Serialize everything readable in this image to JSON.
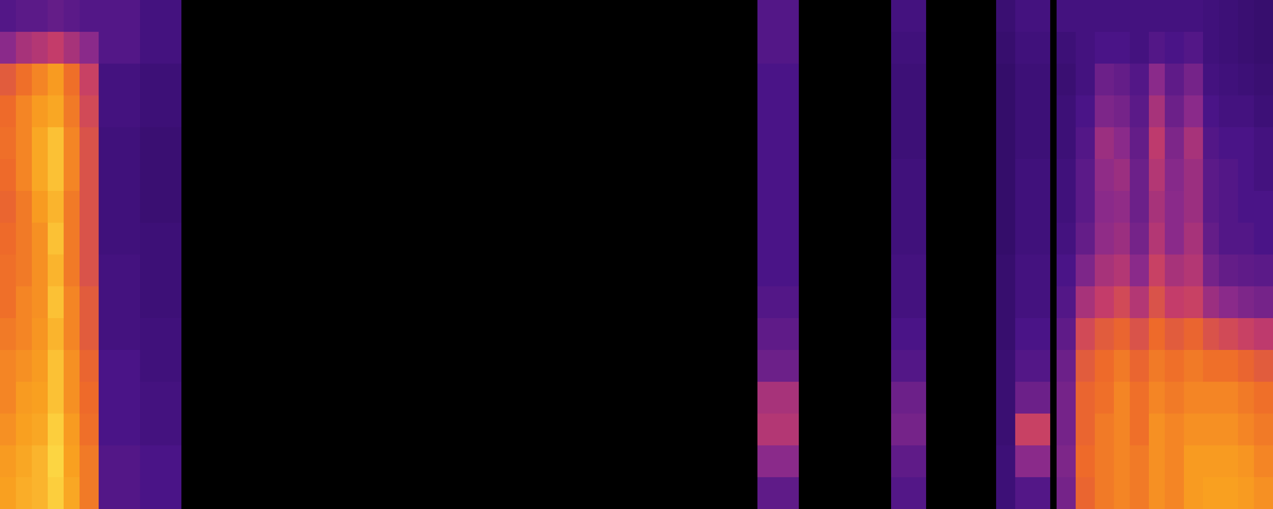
{
  "chart_data": {
    "type": "heatmap",
    "x_bins": [
      0,
      5,
      10,
      15,
      20,
      25,
      31,
      44,
      57,
      238,
      251,
      280,
      291,
      313,
      319,
      330,
      332,
      338,
      344,
      350,
      355,
      361,
      366,
      372,
      378,
      383,
      389,
      394,
      400
    ],
    "y_bins": [
      0,
      10,
      20,
      30,
      40,
      50,
      60,
      70,
      80,
      90,
      100,
      110,
      120,
      130,
      140,
      150,
      160
    ],
    "xlim": [
      0,
      400
    ],
    "ylim": [
      0,
      160
    ],
    "zlim": [
      0,
      1
    ],
    "grid": false,
    "tick_labels": false,
    "cells": [
      [
        0.85,
        0.87,
        0.88,
        0.92,
        0.86,
        0.78,
        0.42,
        0.4,
        0,
        0.45,
        0,
        0.42,
        0,
        0.36,
        0.42,
        0,
        0.5,
        0.74,
        0.78,
        0.8,
        0.78,
        0.82,
        0.8,
        0.84,
        0.85,
        0.85,
        0.84,
        0.82
      ],
      [
        0.84,
        0.86,
        0.88,
        0.93,
        0.85,
        0.78,
        0.42,
        0.4,
        0,
        0.55,
        0,
        0.45,
        0,
        0.36,
        0.55,
        0,
        0.52,
        0.75,
        0.78,
        0.8,
        0.78,
        0.82,
        0.8,
        0.84,
        0.84,
        0.84,
        0.83,
        0.8
      ],
      [
        0.82,
        0.85,
        0.86,
        0.92,
        0.84,
        0.76,
        0.4,
        0.38,
        0,
        0.62,
        0,
        0.5,
        0,
        0.35,
        0.66,
        0,
        0.5,
        0.74,
        0.78,
        0.8,
        0.76,
        0.82,
        0.8,
        0.82,
        0.82,
        0.82,
        0.8,
        0.78
      ],
      [
        0.8,
        0.84,
        0.85,
        0.9,
        0.82,
        0.75,
        0.4,
        0.38,
        0,
        0.6,
        0,
        0.48,
        0,
        0.35,
        0.48,
        0,
        0.5,
        0.74,
        0.76,
        0.8,
        0.76,
        0.8,
        0.78,
        0.8,
        0.8,
        0.8,
        0.78,
        0.76
      ],
      [
        0.8,
        0.82,
        0.84,
        0.9,
        0.82,
        0.74,
        0.4,
        0.37,
        0,
        0.48,
        0,
        0.42,
        0,
        0.35,
        0.42,
        0,
        0.48,
        0.72,
        0.75,
        0.78,
        0.74,
        0.78,
        0.76,
        0.78,
        0.76,
        0.76,
        0.74,
        0.72
      ],
      [
        0.78,
        0.8,
        0.83,
        0.88,
        0.8,
        0.72,
        0.38,
        0.37,
        0,
        0.45,
        0,
        0.4,
        0,
        0.34,
        0.4,
        0,
        0.45,
        0.68,
        0.72,
        0.74,
        0.7,
        0.75,
        0.72,
        0.74,
        0.7,
        0.68,
        0.66,
        0.64
      ],
      [
        0.76,
        0.8,
        0.82,
        0.9,
        0.8,
        0.72,
        0.38,
        0.36,
        0,
        0.42,
        0,
        0.38,
        0,
        0.34,
        0.38,
        0,
        0.42,
        0.6,
        0.65,
        0.68,
        0.62,
        0.7,
        0.65,
        0.66,
        0.58,
        0.55,
        0.52,
        0.5
      ],
      [
        0.76,
        0.78,
        0.82,
        0.88,
        0.78,
        0.7,
        0.38,
        0.36,
        0,
        0.4,
        0,
        0.38,
        0,
        0.34,
        0.38,
        0,
        0.4,
        0.52,
        0.6,
        0.62,
        0.55,
        0.66,
        0.6,
        0.62,
        0.5,
        0.46,
        0.45,
        0.44
      ],
      [
        0.75,
        0.78,
        0.82,
        0.9,
        0.78,
        0.7,
        0.37,
        0.36,
        0,
        0.4,
        0,
        0.37,
        0,
        0.33,
        0.37,
        0,
        0.38,
        0.46,
        0.56,
        0.58,
        0.5,
        0.62,
        0.55,
        0.6,
        0.46,
        0.42,
        0.42,
        0.4
      ],
      [
        0.74,
        0.78,
        0.84,
        0.88,
        0.78,
        0.7,
        0.37,
        0.35,
        0,
        0.4,
        0,
        0.37,
        0,
        0.33,
        0.37,
        0,
        0.37,
        0.44,
        0.55,
        0.56,
        0.48,
        0.6,
        0.55,
        0.58,
        0.44,
        0.42,
        0.4,
        0.4
      ],
      [
        0.75,
        0.8,
        0.86,
        0.9,
        0.8,
        0.7,
        0.37,
        0.35,
        0,
        0.4,
        0,
        0.37,
        0,
        0.33,
        0.37,
        0,
        0.37,
        0.44,
        0.56,
        0.58,
        0.48,
        0.62,
        0.54,
        0.58,
        0.44,
        0.42,
        0.4,
        0.38
      ],
      [
        0.76,
        0.8,
        0.86,
        0.9,
        0.8,
        0.7,
        0.37,
        0.35,
        0,
        0.4,
        0,
        0.36,
        0,
        0.33,
        0.36,
        0,
        0.36,
        0.42,
        0.58,
        0.55,
        0.46,
        0.64,
        0.52,
        0.6,
        0.42,
        0.4,
        0.4,
        0.38
      ],
      [
        0.75,
        0.8,
        0.84,
        0.86,
        0.78,
        0.68,
        0.38,
        0.36,
        0,
        0.4,
        0,
        0.36,
        0,
        0.33,
        0.36,
        0,
        0.36,
        0.4,
        0.52,
        0.5,
        0.44,
        0.6,
        0.48,
        0.55,
        0.4,
        0.38,
        0.38,
        0.36
      ],
      [
        0.72,
        0.76,
        0.8,
        0.84,
        0.76,
        0.66,
        0.38,
        0.36,
        0,
        0.4,
        0,
        0.36,
        0,
        0.33,
        0.36,
        0,
        0.35,
        0.38,
        0.48,
        0.46,
        0.42,
        0.55,
        0.45,
        0.5,
        0.38,
        0.37,
        0.36,
        0.35
      ],
      [
        0.55,
        0.6,
        0.62,
        0.65,
        0.6,
        0.55,
        0.42,
        0.38,
        0,
        0.42,
        0,
        0.37,
        0,
        0.34,
        0.37,
        0,
        0.36,
        0.38,
        0.4,
        0.4,
        0.38,
        0.42,
        0.4,
        0.42,
        0.37,
        0.36,
        0.35,
        0.34
      ],
      [
        0.42,
        0.44,
        0.44,
        0.46,
        0.44,
        0.42,
        0.42,
        0.38,
        0,
        0.42,
        0,
        0.38,
        0,
        0.35,
        0.38,
        0,
        0.38,
        0.38,
        0.38,
        0.38,
        0.38,
        0.38,
        0.38,
        0.38,
        0.37,
        0.36,
        0.35,
        0.34
      ]
    ]
  }
}
